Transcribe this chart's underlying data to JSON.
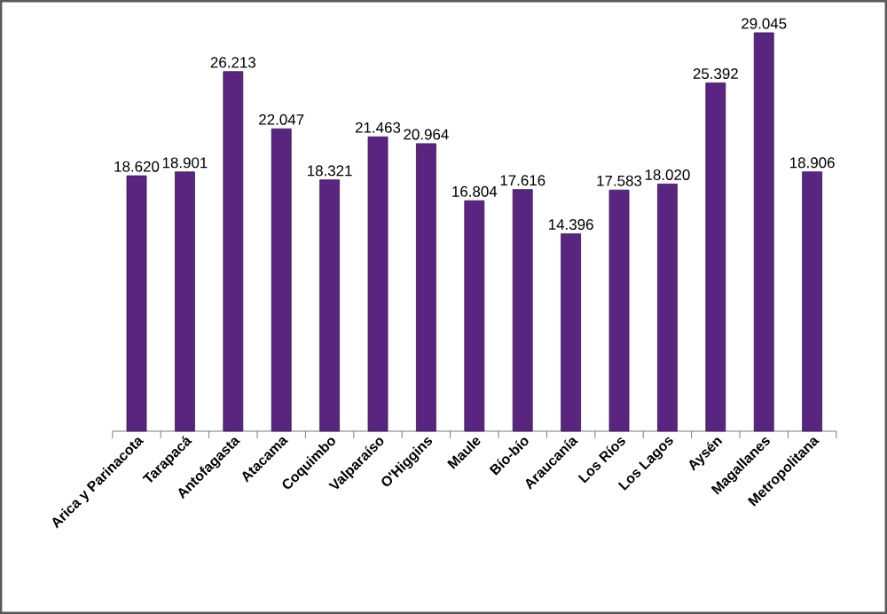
{
  "chart_data": {
    "type": "bar",
    "categories": [
      "Arica y Parinacota",
      "Tarapacá",
      "Antofagasta",
      "Atacama",
      "Coquimbo",
      "Valparaíso",
      "O'Higgins",
      "Maule",
      "Bío-bío",
      "Araucanía",
      "Los Ríos",
      "Los Lagos",
      "Aysén",
      "Magallanes",
      "Metropolitana"
    ],
    "values": [
      18.62,
      18.901,
      26.213,
      22.047,
      18.321,
      21.463,
      20.964,
      16.804,
      17.616,
      14.396,
      17.583,
      18.02,
      25.392,
      29.045,
      18.906
    ],
    "value_labels": [
      "18.620",
      "18.901",
      "26.213",
      "22.047",
      "18.321",
      "21.463",
      "20.964",
      "16.804",
      "17.616",
      "14.396",
      "17.583",
      "18.020",
      "25.392",
      "29.045",
      "18.906"
    ],
    "color": "#5a2580"
  }
}
